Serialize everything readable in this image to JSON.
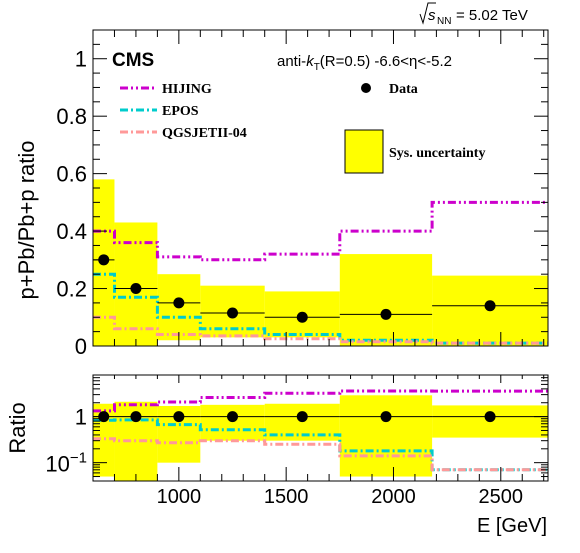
{
  "chart_data": [
    {
      "type": "step",
      "panel": "top",
      "ylabel": "p+Pb/Pb+p ratio",
      "ylim": [
        0,
        1.1
      ],
      "yticks": [
        "0",
        "0.2",
        "0.4",
        "0.6",
        "0.8",
        "1"
      ],
      "experiment": "CMS",
      "energy_label": "= 5.02 TeV",
      "energy_sqrt": "s",
      "energy_sub": "NN",
      "selection": {
        "prefix": "anti-",
        "k": "k",
        "t": "T",
        "rest": "(R=0.5) -6.6<η<-5.2"
      },
      "bin_edges": [
        600,
        700,
        900,
        1100,
        1400,
        1750,
        2180,
        2720
      ],
      "data": {
        "name": "Data",
        "x": [
          650,
          800,
          1000,
          1250,
          1575,
          1965,
          2450
        ],
        "y": [
          0.3,
          0.2,
          0.15,
          0.115,
          0.1,
          0.11,
          0.14
        ],
        "sys_low": [
          0.0,
          0.0,
          0.02,
          0.03,
          0.03,
          0.0,
          0.0
        ],
        "sys_high": [
          0.58,
          0.43,
          0.25,
          0.21,
          0.19,
          0.32,
          0.245
        ],
        "color": "#000000",
        "band_color": "#ffff00"
      },
      "series": [
        {
          "name": "HIJING",
          "style": "dash-dot-dot",
          "color": "#cc00cc",
          "values": [
            0.4,
            0.36,
            0.31,
            0.3,
            0.32,
            0.4,
            0.5
          ]
        },
        {
          "name": "EPOS",
          "style": "dash-dot",
          "color": "#00cccc",
          "values": [
            0.25,
            0.17,
            0.1,
            0.06,
            0.04,
            0.02,
            0.01
          ]
        },
        {
          "name": "QGSJETII-04",
          "style": "dash-dot",
          "color": "#ff9999",
          "values": [
            0.1,
            0.06,
            0.04,
            0.035,
            0.025,
            0.015,
            0.01
          ]
        }
      ],
      "legend": {
        "hijing": "HIJING",
        "epos": "EPOS",
        "qgsjet": "QGSJETII-04",
        "data": "Data",
        "sys": "Sys. uncertainty"
      }
    },
    {
      "type": "step",
      "panel": "bottom",
      "ylabel": "Ratio",
      "yscale": "log",
      "ylim": [
        0.04,
        8
      ],
      "yticks": [
        "1"
      ],
      "ytick_minus": "10",
      "ytick_minus_exp": "−1",
      "xlabel": "E [GeV]",
      "xlim": [
        600,
        2720
      ],
      "xticks": [
        1000,
        1500,
        2000,
        2500
      ],
      "xtick_labels": [
        "1000",
        "1500",
        "2000",
        "2500"
      ],
      "bin_edges": [
        600,
        700,
        900,
        1100,
        1400,
        1750,
        2180,
        2720
      ],
      "data": {
        "x": [
          650,
          800,
          1000,
          1250,
          1575,
          1965,
          2450
        ],
        "y": [
          1,
          1,
          1,
          1,
          1,
          1,
          1
        ],
        "sys_low": [
          0.05,
          0.04,
          0.1,
          0.3,
          0.3,
          0.05,
          0.35
        ],
        "sys_high": [
          1.9,
          2.1,
          1.7,
          1.8,
          1.9,
          2.9,
          1.75
        ]
      },
      "series": [
        {
          "name": "HIJING",
          "values": [
            1.33,
            1.8,
            2.07,
            2.6,
            3.2,
            3.6,
            3.57
          ]
        },
        {
          "name": "EPOS",
          "values": [
            0.83,
            0.85,
            0.67,
            0.52,
            0.4,
            0.18,
            0.07
          ]
        },
        {
          "name": "QGSJETII-04",
          "values": [
            0.33,
            0.3,
            0.27,
            0.3,
            0.25,
            0.14,
            0.07
          ]
        }
      ]
    }
  ]
}
